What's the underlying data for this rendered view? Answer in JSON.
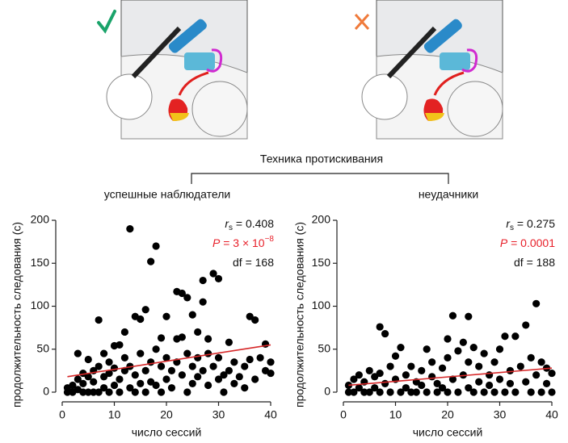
{
  "header": {
    "title": "Техника протискивания"
  },
  "chart_data": [
    {
      "type": "scatter",
      "title": "успешные наблюдатели",
      "xlabel": "число сессий",
      "ylabel": "продолжительность следования (с)",
      "xlim": [
        0,
        40
      ],
      "ylim": [
        0,
        200
      ],
      "xticks": [
        0,
        10,
        20,
        30,
        40
      ],
      "yticks": [
        0,
        50,
        100,
        150,
        200
      ],
      "color": "#000000",
      "x": [
        1,
        1,
        2,
        2,
        3,
        3,
        3,
        4,
        4,
        4,
        5,
        5,
        5,
        6,
        6,
        6,
        7,
        7,
        7,
        8,
        8,
        8,
        9,
        9,
        9,
        10,
        10,
        10,
        11,
        11,
        11,
        12,
        12,
        12,
        13,
        13,
        13,
        14,
        14,
        14,
        15,
        15,
        15,
        16,
        16,
        16,
        17,
        17,
        17,
        18,
        18,
        18,
        19,
        19,
        19,
        20,
        20,
        20,
        21,
        21,
        22,
        22,
        22,
        23,
        23,
        23,
        24,
        24,
        24,
        25,
        25,
        25,
        26,
        26,
        26,
        27,
        27,
        27,
        28,
        28,
        28,
        29,
        29,
        30,
        30,
        30,
        31,
        31,
        32,
        32,
        33,
        33,
        34,
        35,
        35,
        36,
        36,
        37,
        37,
        38,
        39,
        39,
        40,
        40
      ],
      "values": [
        5,
        0,
        8,
        0,
        3,
        15,
        45,
        0,
        22,
        10,
        0,
        38,
        18,
        0,
        12,
        25,
        84,
        0,
        30,
        5,
        18,
        45,
        0,
        22,
        35,
        54,
        8,
        28,
        55,
        0,
        15,
        70,
        25,
        40,
        190,
        5,
        30,
        88,
        0,
        20,
        85,
        45,
        10,
        96,
        25,
        0,
        152,
        35,
        12,
        170,
        50,
        8,
        63,
        30,
        0,
        88,
        40,
        15,
        25,
        5,
        117,
        62,
        35,
        115,
        64,
        20,
        110,
        45,
        0,
        90,
        30,
        10,
        70,
        40,
        18,
        130,
        105,
        25,
        62,
        45,
        8,
        138,
        30,
        132,
        40,
        15,
        20,
        0,
        58,
        25,
        35,
        10,
        18,
        30,
        5,
        88,
        38,
        84,
        15,
        40,
        56,
        25,
        35,
        22
      ],
      "trend": {
        "x": [
          1,
          40
        ],
        "values": [
          18,
          55
        ],
        "color": "#d62728"
      },
      "stats": [
        {
          "symbol": "r",
          "sub": "s",
          "text": " = 0.408",
          "color": "#111111"
        },
        {
          "symbol": "P",
          "text": " = 3 × 10",
          "sup": "−8",
          "color": "#e8202a"
        },
        {
          "text": "df = 168",
          "color": "#111111"
        }
      ]
    },
    {
      "type": "scatter",
      "title": "неудачники",
      "xlabel": "число сессий",
      "ylabel": "продолжительность следования (с)",
      "xlim": [
        0,
        40
      ],
      "ylim": [
        0,
        200
      ],
      "xticks": [
        0,
        10,
        20,
        30,
        40
      ],
      "yticks": [
        0,
        50,
        100,
        150,
        200
      ],
      "color": "#000000",
      "x": [
        1,
        1,
        2,
        2,
        3,
        3,
        4,
        4,
        5,
        5,
        6,
        6,
        7,
        7,
        7,
        8,
        8,
        9,
        9,
        10,
        10,
        11,
        11,
        12,
        12,
        13,
        13,
        14,
        14,
        15,
        15,
        16,
        16,
        17,
        17,
        18,
        18,
        19,
        19,
        20,
        20,
        20,
        21,
        21,
        22,
        22,
        23,
        23,
        24,
        24,
        24,
        25,
        25,
        26,
        26,
        27,
        27,
        28,
        28,
        29,
        29,
        30,
        30,
        31,
        31,
        32,
        32,
        33,
        33,
        34,
        35,
        35,
        36,
        36,
        37,
        37,
        38,
        38,
        39,
        39,
        40,
        40
      ],
      "values": [
        0,
        8,
        0,
        15,
        5,
        20,
        0,
        12,
        25,
        0,
        18,
        5,
        76,
        0,
        22,
        68,
        10,
        0,
        30,
        15,
        42,
        52,
        0,
        20,
        5,
        0,
        30,
        12,
        0,
        25,
        8,
        50,
        0,
        18,
        35,
        0,
        10,
        28,
        5,
        62,
        0,
        40,
        89,
        15,
        0,
        48,
        58,
        20,
        88,
        5,
        35,
        52,
        0,
        30,
        12,
        45,
        0,
        20,
        8,
        35,
        0,
        50,
        15,
        65,
        0,
        25,
        10,
        65,
        0,
        30,
        78,
        12,
        40,
        0,
        103,
        20,
        35,
        0,
        28,
        10,
        22,
        0
      ],
      "trend": {
        "x": [
          1,
          40
        ],
        "values": [
          8,
          28
        ],
        "color": "#d62728"
      },
      "stats": [
        {
          "symbol": "r",
          "sub": "s",
          "text": " = 0.275",
          "color": "#111111"
        },
        {
          "symbol": "P",
          "text": " = 0.0001",
          "color": "#e8202a"
        },
        {
          "text": "df = 188",
          "color": "#111111"
        }
      ]
    }
  ]
}
